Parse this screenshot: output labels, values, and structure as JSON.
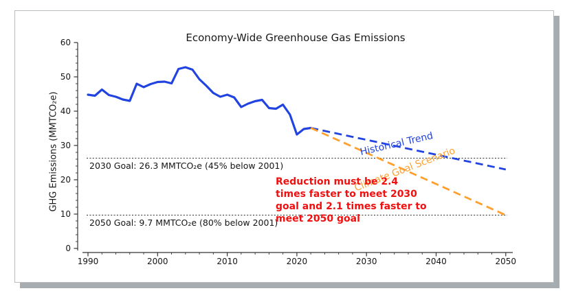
{
  "chart_data": {
    "type": "line",
    "title": "Economy-Wide Greenhouse Gas Emissions",
    "xlabel": "",
    "ylabel": "GHG Emissions (MMTCO₂e)",
    "xlim": [
      1988,
      2052
    ],
    "ylim": [
      0,
      60
    ],
    "x_ticks_major": [
      1990,
      2000,
      2010,
      2020,
      2030,
      2040,
      2050
    ],
    "x_minor_tick_step": 2,
    "y_ticks_major": [
      0,
      10,
      20,
      30,
      40,
      50,
      60
    ],
    "y_minor_tick_step": 2,
    "grid": false,
    "legend_position": "inline-rotated-labels",
    "series": [
      {
        "label": "",
        "style": "solid",
        "color": "#2143e0",
        "x": [
          1990,
          1991,
          1992,
          1993,
          1994,
          1995,
          1996,
          1997,
          1998,
          1999,
          2000,
          2001,
          2002,
          2003,
          2004,
          2005,
          2006,
          2007,
          2008,
          2009,
          2010,
          2011,
          2012,
          2013,
          2014,
          2015,
          2016,
          2017,
          2018,
          2019,
          2020,
          2021,
          2022
        ],
        "values": [
          44.8,
          44.5,
          46.3,
          44.7,
          44.2,
          43.4,
          43.0,
          48.0,
          47.0,
          47.9,
          48.5,
          48.6,
          48.1,
          52.3,
          52.8,
          52.1,
          49.3,
          47.4,
          45.3,
          44.2,
          44.8,
          44.0,
          41.2,
          42.2,
          42.9,
          43.3,
          40.9,
          40.7,
          41.9,
          39.0,
          33.2,
          34.8,
          35.1
        ]
      },
      {
        "label": "Historical Trend",
        "style": "dashed",
        "color": "#2143e0",
        "x": [
          2022,
          2050
        ],
        "values": [
          35.1,
          23.0
        ]
      },
      {
        "label": "Climate Goal Scenario",
        "style": "dashed",
        "color": "#ffa02e",
        "x": [
          2022,
          2050
        ],
        "values": [
          35.1,
          9.7
        ]
      }
    ],
    "goal_lines": [
      {
        "value": 26.3,
        "label": "2030 Goal: 26.3 MMTCO₂e (45% below 2001)"
      },
      {
        "value": 9.7,
        "label": "2050 Goal: 9.7 MMTCO₂e (80% below 2001)"
      }
    ],
    "annotation": {
      "color": "#f01010",
      "lines": [
        "Reduction must be 2.4",
        "times faster to meet 2030",
        "goal and 2.1 times faster to",
        "meet 2050 goal"
      ]
    },
    "colors": {
      "axis": "#333333",
      "goal_line": "#2b2b2b",
      "card_shadow": "#a7acb0"
    }
  }
}
